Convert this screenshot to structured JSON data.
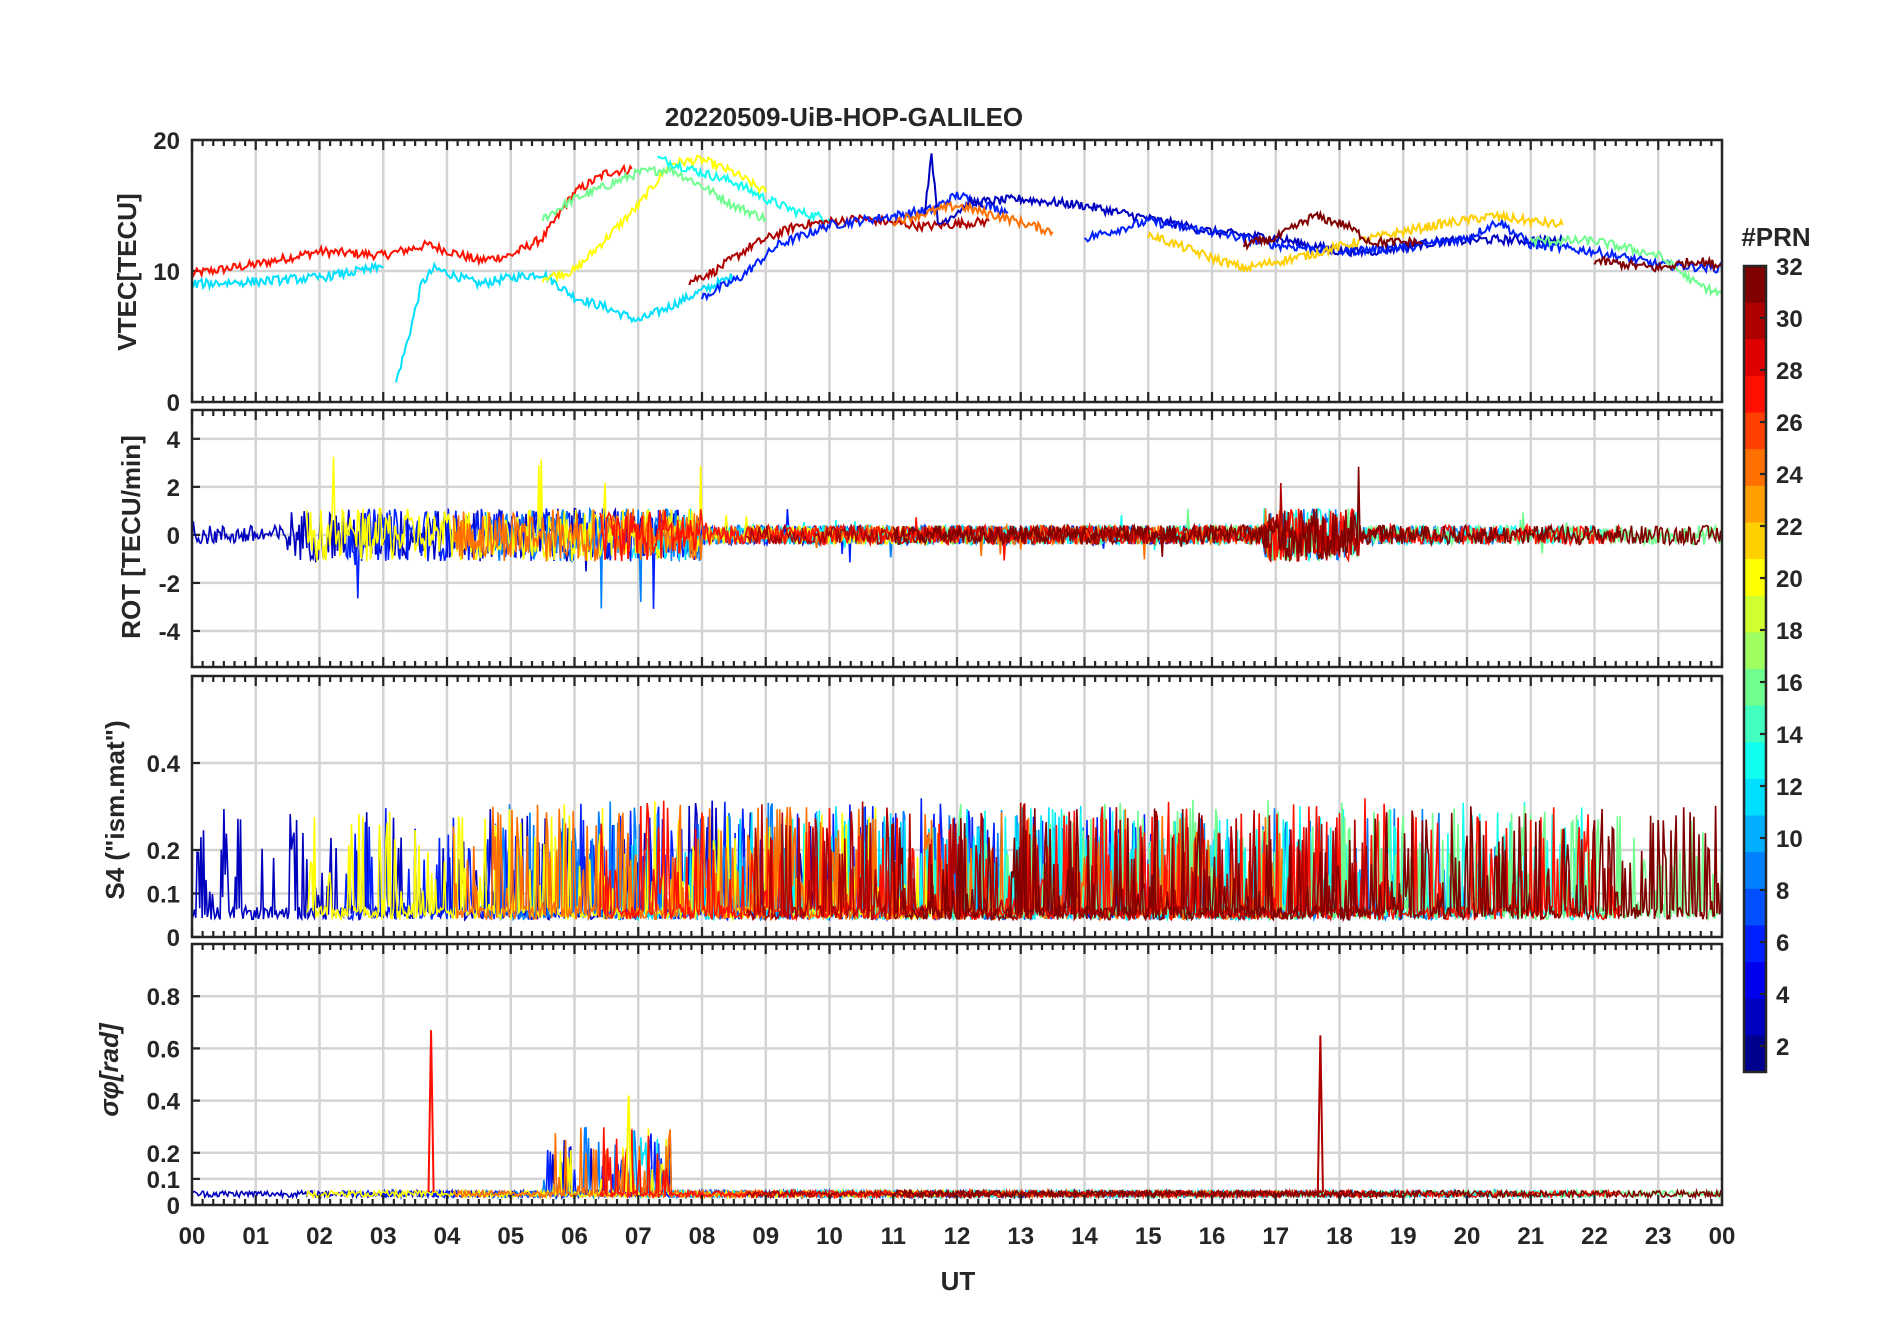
{
  "chart_data": {
    "type": "line",
    "title": "20220509-UiB-HOP-GALILEO",
    "xlabel": "UT",
    "x_ticks": [
      "00",
      "01",
      "02",
      "03",
      "04",
      "05",
      "06",
      "07",
      "08",
      "09",
      "10",
      "11",
      "12",
      "13",
      "14",
      "15",
      "16",
      "17",
      "18",
      "19",
      "20",
      "21",
      "22",
      "23",
      "00"
    ],
    "xlim_hours": [
      0,
      24
    ],
    "colorbar": {
      "title": "#PRN",
      "range": [
        1,
        32
      ],
      "ticks": [
        "2",
        "4",
        "6",
        "8",
        "10",
        "12",
        "14",
        "16",
        "18",
        "20",
        "22",
        "24",
        "26",
        "28",
        "30",
        "32"
      ],
      "colors": [
        "#00008f",
        "#0000bf",
        "#0000ef",
        "#0020ff",
        "#0050ff",
        "#0080ff",
        "#00afff",
        "#00dfff",
        "#10ffef",
        "#40ffbf",
        "#70ff8f",
        "#9fff60",
        "#cfff30",
        "#ffff00",
        "#ffcf00",
        "#ff9f00",
        "#ff7000",
        "#ff4000",
        "#ff1000",
        "#df0000",
        "#af0000",
        "#800000"
      ]
    },
    "panels": [
      {
        "name": "vtec",
        "ylabel": "VTEC[TECU]",
        "ylim": [
          0,
          20
        ],
        "yticks": [
          "0",
          "10",
          "20"
        ],
        "series": [
          {
            "prn": 28,
            "points": [
              [
                0,
                9.8
              ],
              [
                1,
                10.5
              ],
              [
                2,
                11.5
              ],
              [
                3,
                11.2
              ],
              [
                3.7,
                12
              ],
              [
                4.5,
                10.8
              ],
              [
                5,
                11.2
              ],
              [
                5.5,
                12.5
              ],
              [
                6,
                16
              ],
              [
                6.5,
                17.5
              ],
              [
                6.9,
                17.8
              ]
            ]
          },
          {
            "prn": 12,
            "points": [
              [
                3.2,
                1.5
              ],
              [
                3.4,
                5
              ],
              [
                3.6,
                9
              ],
              [
                3.8,
                10.2
              ],
              [
                4.5,
                9
              ],
              [
                5,
                9.5
              ],
              [
                5.5,
                9.8
              ],
              [
                6,
                8
              ],
              [
                6.5,
                7.2
              ],
              [
                7,
                6.2
              ],
              [
                7.5,
                7.3
              ],
              [
                8,
                8.5
              ],
              [
                8.5,
                9.6
              ]
            ]
          },
          {
            "prn": 20,
            "points": [
              [
                5.5,
                9.5
              ],
              [
                6,
                10
              ],
              [
                6.5,
                12.5
              ],
              [
                7,
                15
              ],
              [
                7.5,
                18.2
              ],
              [
                8,
                18.5
              ],
              [
                8.5,
                17.5
              ],
              [
                9,
                16
              ]
            ]
          },
          {
            "prn": 16,
            "points": [
              [
                5.5,
                14
              ],
              [
                6,
                15.5
              ],
              [
                6.5,
                16.5
              ],
              [
                7,
                17.5
              ],
              [
                7.5,
                17.8
              ],
              [
                8,
                16.5
              ],
              [
                8.5,
                15
              ],
              [
                9,
                14
              ]
            ]
          },
          {
            "prn": 13,
            "points": [
              [
                7.3,
                18.6
              ],
              [
                8,
                17.5
              ],
              [
                8.5,
                16.8
              ],
              [
                9,
                15.5
              ],
              [
                9.5,
                14.5
              ],
              [
                10,
                14
              ]
            ]
          },
          {
            "prn": 30,
            "points": [
              [
                7.8,
                9.2
              ],
              [
                8.2,
                10
              ],
              [
                8.8,
                12
              ],
              [
                9.5,
                13.5
              ],
              [
                10.5,
                14
              ],
              [
                11.5,
                13.4
              ],
              [
                12.5,
                13.8
              ]
            ]
          },
          {
            "prn": 5,
            "points": [
              [
                8,
                8
              ],
              [
                8.6,
                9.5
              ],
              [
                9.2,
                12
              ],
              [
                10,
                13.5
              ],
              [
                11,
                14.2
              ],
              [
                11.6,
                14.7
              ],
              [
                12,
                15.8
              ],
              [
                12.8,
                14.5
              ]
            ]
          },
          {
            "prn": 3,
            "points": [
              [
                11.5,
                14.5
              ],
              [
                11.6,
                19.2
              ],
              [
                11.7,
                13.5
              ],
              [
                12.2,
                15.2
              ],
              [
                13,
                15.5
              ],
              [
                14,
                15
              ],
              [
                15,
                14
              ],
              [
                16,
                13
              ],
              [
                17,
                12.5
              ],
              [
                18,
                11.5
              ],
              [
                18.5,
                11.5
              ],
              [
                19.5,
                12.2
              ],
              [
                20.3,
                12.4
              ],
              [
                21.5,
                12.3
              ]
            ]
          },
          {
            "prn": 24,
            "points": [
              [
                11,
                13.8
              ],
              [
                12,
                15
              ],
              [
                12.8,
                14
              ],
              [
                13.5,
                13
              ]
            ]
          },
          {
            "prn": 6,
            "points": [
              [
                14,
                12.5
              ],
              [
                15,
                13.8
              ],
              [
                16,
                13
              ],
              [
                17,
                12
              ],
              [
                18,
                11.5
              ],
              [
                19,
                11.8
              ],
              [
                20,
                12.5
              ],
              [
                20.5,
                13.8
              ],
              [
                21,
                12
              ],
              [
                22,
                11.5
              ],
              [
                23,
                10.5
              ],
              [
                24,
                10.2
              ]
            ]
          },
          {
            "prn": 22,
            "points": [
              [
                15,
                12.8
              ],
              [
                16,
                11
              ],
              [
                16.5,
                10.2
              ],
              [
                17.5,
                11.2
              ],
              [
                18.5,
                12.5
              ],
              [
                19.5,
                13.5
              ],
              [
                20.4,
                14.2
              ],
              [
                21.5,
                13.5
              ]
            ]
          },
          {
            "prn": 32,
            "points": [
              [
                16.5,
                12
              ],
              [
                17,
                12.5
              ],
              [
                17.6,
                14.2
              ],
              [
                18.1,
                13.5
              ],
              [
                18.5,
                12.2
              ],
              [
                19.3,
                12.2
              ]
            ]
          },
          {
            "prn": 16,
            "points": [
              [
                21,
                12.3
              ],
              [
                22,
                12.3
              ],
              [
                23,
                11.2
              ],
              [
                23.6,
                9
              ],
              [
                24,
                8.2
              ]
            ]
          },
          {
            "prn": 11,
            "points": [
              [
                0,
                9
              ],
              [
                1,
                9.2
              ],
              [
                2,
                9.5
              ],
              [
                3,
                10.3
              ]
            ]
          },
          {
            "prn": 32,
            "points": [
              [
                22,
                10.8
              ],
              [
                23,
                10.2
              ],
              [
                23.6,
                10.8
              ],
              [
                24,
                10.4
              ]
            ]
          }
        ]
      },
      {
        "name": "rot",
        "ylabel": "ROT [TECU/min]",
        "ylim": [
          -5.5,
          5.2
        ],
        "yticks": [
          "-4",
          "-2",
          "0",
          "2",
          "4"
        ]
      },
      {
        "name": "s4",
        "ylabel": "S4 (\"ism.mat\")",
        "ylim": [
          0,
          0.6
        ],
        "yticks": [
          "0",
          "0.1",
          "0.2",
          "0.4"
        ]
      },
      {
        "name": "sigma_phi",
        "ylabel": "σφ[rad]",
        "ylim": [
          0,
          1
        ],
        "yticks": [
          "0",
          "0.1",
          "0.2",
          "0.4",
          "0.6",
          "0.8"
        ]
      }
    ]
  }
}
